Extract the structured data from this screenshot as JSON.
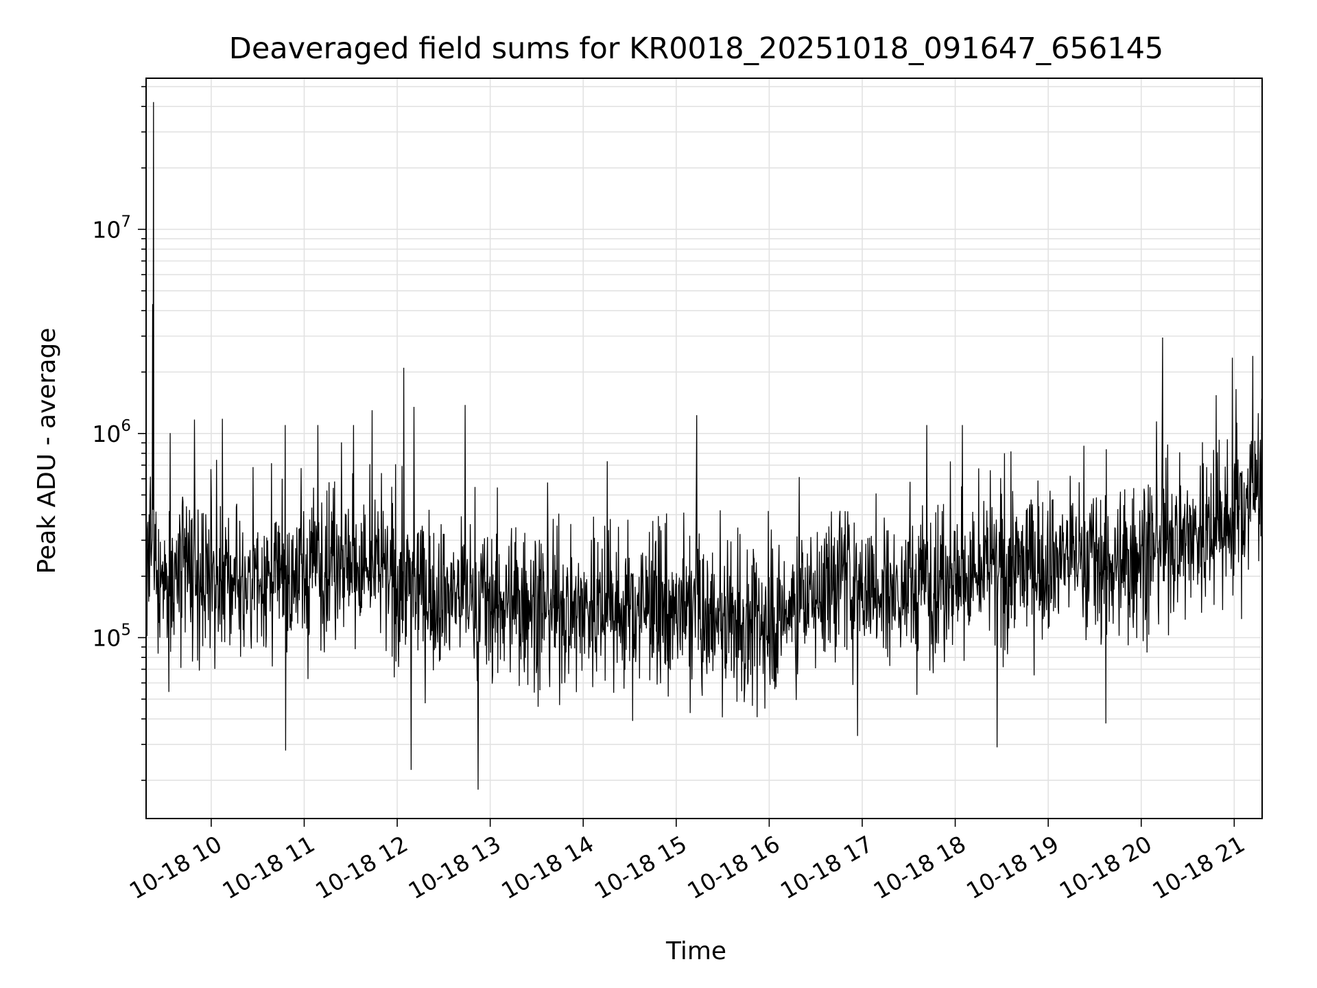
{
  "chart_data": {
    "type": "line",
    "title": "Deaveraged field sums for KR0018_20251018_091647_656145",
    "xlabel": "Time",
    "ylabel": "Peak ADU - average",
    "yscale": "log",
    "ylim": [
      13000,
      55000000
    ],
    "xlim_hours": [
      9.3,
      21.3
    ],
    "x_ticks": [
      {
        "hour": 10,
        "label": "10-18 10"
      },
      {
        "hour": 11,
        "label": "10-18 11"
      },
      {
        "hour": 12,
        "label": "10-18 12"
      },
      {
        "hour": 13,
        "label": "10-18 13"
      },
      {
        "hour": 14,
        "label": "10-18 14"
      },
      {
        "hour": 15,
        "label": "10-18 15"
      },
      {
        "hour": 16,
        "label": "10-18 16"
      },
      {
        "hour": 17,
        "label": "10-18 17"
      },
      {
        "hour": 18,
        "label": "10-18 18"
      },
      {
        "hour": 19,
        "label": "10-18 19"
      },
      {
        "hour": 20,
        "label": "10-18 20"
      },
      {
        "hour": 21,
        "label": "10-18 21"
      }
    ],
    "y_ticks": [
      {
        "value": 100000,
        "base": "10",
        "exp": "5"
      },
      {
        "value": 1000000,
        "base": "10",
        "exp": "6"
      },
      {
        "value": 10000000,
        "base": "10",
        "exp": "7"
      }
    ],
    "grid": true,
    "line_color": "#000000",
    "series": [
      {
        "name": "peak_adu_minus_average",
        "baseline_hours": [
          9.3,
          9.8,
          10.3,
          10.8,
          11.3,
          11.8,
          12.3,
          12.8,
          13.3,
          13.8,
          14.3,
          14.8,
          15.3,
          15.8,
          16.3,
          16.8,
          17.3,
          17.8,
          18.3,
          18.8,
          19.3,
          19.8,
          20.3,
          20.8,
          21.3
        ],
        "baseline_values": [
          210000,
          190000,
          175000,
          190000,
          250000,
          200000,
          170000,
          160000,
          145000,
          140000,
          140000,
          135000,
          120000,
          110000,
          140000,
          190000,
          170000,
          190000,
          200000,
          230000,
          260000,
          220000,
          310000,
          330000,
          540000
        ],
        "spikes": [
          {
            "hour": 9.38,
            "value": 42000000
          },
          {
            "hour": 9.37,
            "value": 4300000
          },
          {
            "hour": 12.07,
            "value": 2100000
          },
          {
            "hour": 20.23,
            "value": 2950000
          },
          {
            "hour": 20.98,
            "value": 2350000
          },
          {
            "hour": 21.2,
            "value": 2400000
          },
          {
            "hour": 21.02,
            "value": 1650000
          },
          {
            "hour": 11.73,
            "value": 1300000
          },
          {
            "hour": 12.18,
            "value": 1350000
          },
          {
            "hour": 12.73,
            "value": 1380000
          },
          {
            "hour": 15.22,
            "value": 1230000
          },
          {
            "hour": 10.8,
            "value": 1220000
          },
          {
            "hour": 9.82,
            "value": 1170000
          },
          {
            "hour": 10.12,
            "value": 1180000
          },
          {
            "hour": 12.87,
            "value": 18000
          },
          {
            "hour": 12.15,
            "value": 22500
          },
          {
            "hour": 10.8,
            "value": 28000
          },
          {
            "hour": 18.45,
            "value": 29000
          },
          {
            "hour": 19.62,
            "value": 38000
          },
          {
            "hour": 16.95,
            "value": 33000
          }
        ]
      }
    ]
  }
}
